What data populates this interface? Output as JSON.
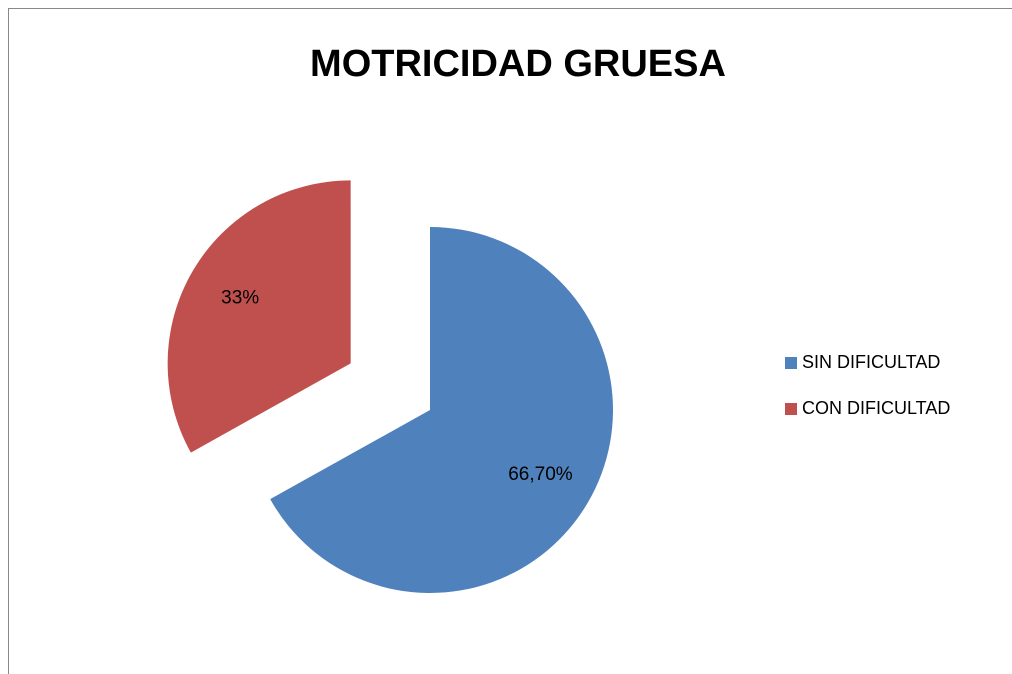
{
  "chart_data": {
    "type": "pie",
    "title": "MOTRICIDAD GRUESA",
    "categories": [
      "SIN DIFICULTAD",
      "CON DIFICULTAD"
    ],
    "values": [
      66.7,
      33
    ],
    "value_labels": [
      "66,70%",
      "33%"
    ],
    "colors": [
      "#4f81bd",
      "#c0504d"
    ],
    "legend": "right"
  }
}
